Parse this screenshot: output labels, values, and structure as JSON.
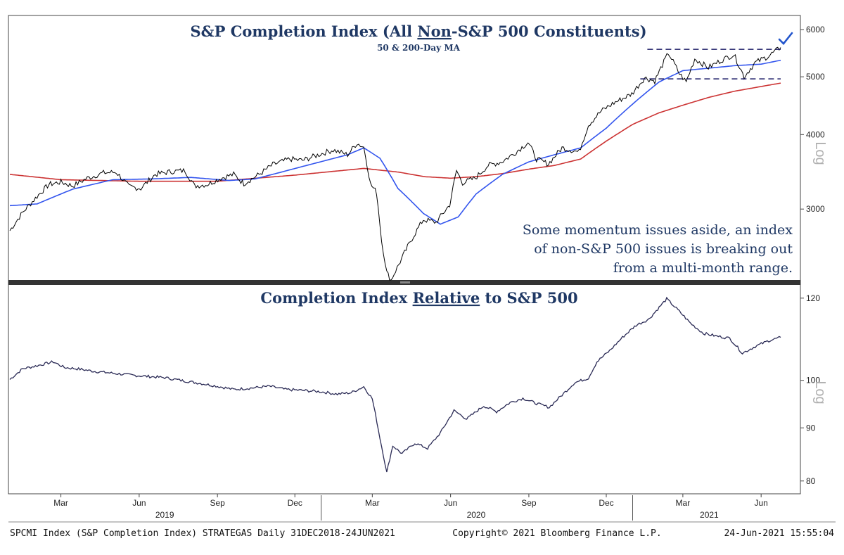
{
  "colors": {
    "title": "#1f3864",
    "price_line": "#000000",
    "ma50": "#3355ee",
    "ma200": "#cc3333",
    "range_lines": "#1a1a66",
    "relative_line": "#2a2a55",
    "check_mark": "#2255cc",
    "divider": "#333333"
  },
  "footer": {
    "left": "SPCMI Index (S&P Completion Index) STRATEGAS  Daily 31DEC2018-24JUN2021",
    "center": "Copyright© 2021 Bloomberg Finance L.P.",
    "right": "24-Jun-2021 15:55:04"
  },
  "x_axis": {
    "month_ticks": [
      {
        "label": "Mar",
        "date": "2019-03-01"
      },
      {
        "label": "Jun",
        "date": "2019-06-01"
      },
      {
        "label": "Sep",
        "date": "2019-09-01"
      },
      {
        "label": "Dec",
        "date": "2019-12-01"
      },
      {
        "label": "Mar",
        "date": "2020-03-01"
      },
      {
        "label": "Jun",
        "date": "2020-06-01"
      },
      {
        "label": "Sep",
        "date": "2020-09-01"
      },
      {
        "label": "Dec",
        "date": "2020-12-01"
      },
      {
        "label": "Mar",
        "date": "2021-03-01"
      },
      {
        "label": "Jun",
        "date": "2021-06-01"
      }
    ],
    "year_labels": [
      {
        "label": "2019",
        "date": "2019-07-01"
      },
      {
        "label": "2020",
        "date": "2020-07-01"
      },
      {
        "label": "2021",
        "date": "2021-04-01"
      }
    ],
    "year_separators": [
      "2020-01-01",
      "2021-01-01"
    ],
    "start": "2018-12-31",
    "end": "2021-06-24"
  },
  "chart_data": [
    {
      "type": "line",
      "title": "S&P Completion Index (All Non-S&P 500 Constituents)",
      "title_parts": [
        "S&P Completion Index (All ",
        "Non",
        "-S&P 500 Constituents)"
      ],
      "subtitle": "50 & 200-Day MA",
      "y_scale": "log",
      "ylabel": "Log",
      "ylim": [
        2300,
        6200
      ],
      "yticks": [
        3000,
        4000,
        5000,
        6000
      ],
      "annotation": [
        "Some momentum issues aside, an index",
        "of non-S&P 500 issues is breaking out",
        "from a multi-month range."
      ],
      "range_band": {
        "upper": 5560,
        "lower": 4960,
        "from": "2021-01-10",
        "to": "2021-06-24"
      },
      "series": [
        {
          "role": "price",
          "points": [
            [
              "2018-12-31",
              2760
            ],
            [
              "2019-01-15",
              2960
            ],
            [
              "2019-02-01",
              3150
            ],
            [
              "2019-02-15",
              3300
            ],
            [
              "2019-03-01",
              3330
            ],
            [
              "2019-03-15",
              3280
            ],
            [
              "2019-04-01",
              3380
            ],
            [
              "2019-04-20",
              3450
            ],
            [
              "2019-05-05",
              3460
            ],
            [
              "2019-05-20",
              3270
            ],
            [
              "2019-06-03",
              3250
            ],
            [
              "2019-06-20",
              3430
            ],
            [
              "2019-07-10",
              3470
            ],
            [
              "2019-07-25",
              3480
            ],
            [
              "2019-08-05",
              3280
            ],
            [
              "2019-08-20",
              3300
            ],
            [
              "2019-09-05",
              3380
            ],
            [
              "2019-09-20",
              3430
            ],
            [
              "2019-10-02",
              3310
            ],
            [
              "2019-10-20",
              3430
            ],
            [
              "2019-11-05",
              3560
            ],
            [
              "2019-11-25",
              3640
            ],
            [
              "2019-12-10",
              3620
            ],
            [
              "2019-12-31",
              3710
            ],
            [
              "2020-01-15",
              3770
            ],
            [
              "2020-02-01",
              3700
            ],
            [
              "2020-02-12",
              3870
            ],
            [
              "2020-02-20",
              3810
            ],
            [
              "2020-02-28",
              3300
            ],
            [
              "2020-03-06",
              3200
            ],
            [
              "2020-03-12",
              2650
            ],
            [
              "2020-03-18",
              2350
            ],
            [
              "2020-03-23",
              2280
            ],
            [
              "2020-04-01",
              2420
            ],
            [
              "2020-04-15",
              2650
            ],
            [
              "2020-04-30",
              2880
            ],
            [
              "2020-05-15",
              2850
            ],
            [
              "2020-05-31",
              3050
            ],
            [
              "2020-06-08",
              3480
            ],
            [
              "2020-06-15",
              3320
            ],
            [
              "2020-06-30",
              3380
            ],
            [
              "2020-07-15",
              3550
            ],
            [
              "2020-07-31",
              3600
            ],
            [
              "2020-08-15",
              3720
            ],
            [
              "2020-08-31",
              3880
            ],
            [
              "2020-09-10",
              3640
            ],
            [
              "2020-09-24",
              3570
            ],
            [
              "2020-10-10",
              3800
            ],
            [
              "2020-10-30",
              3740
            ],
            [
              "2020-11-10",
              4150
            ],
            [
              "2020-11-25",
              4380
            ],
            [
              "2020-12-10",
              4520
            ],
            [
              "2020-12-31",
              4680
            ],
            [
              "2021-01-15",
              4980
            ],
            [
              "2021-01-27",
              4920
            ],
            [
              "2021-02-12",
              5480
            ],
            [
              "2021-02-25",
              5060
            ],
            [
              "2021-03-05",
              4900
            ],
            [
              "2021-03-15",
              5360
            ],
            [
              "2021-03-31",
              5180
            ],
            [
              "2021-04-15",
              5330
            ],
            [
              "2021-04-30",
              5450
            ],
            [
              "2021-05-12",
              5000
            ],
            [
              "2021-05-25",
              5280
            ],
            [
              "2021-06-10",
              5420
            ],
            [
              "2021-06-24",
              5600
            ]
          ]
        },
        {
          "role": "ma50",
          "name": "50-Day MA",
          "points": [
            [
              "2018-12-31",
              3040
            ],
            [
              "2019-02-01",
              3060
            ],
            [
              "2019-03-15",
              3240
            ],
            [
              "2019-05-01",
              3360
            ],
            [
              "2019-06-15",
              3370
            ],
            [
              "2019-08-01",
              3390
            ],
            [
              "2019-09-15",
              3350
            ],
            [
              "2019-10-15",
              3370
            ],
            [
              "2019-11-15",
              3460
            ],
            [
              "2019-12-31",
              3600
            ],
            [
              "2020-02-01",
              3700
            ],
            [
              "2020-02-20",
              3800
            ],
            [
              "2020-03-10",
              3650
            ],
            [
              "2020-03-31",
              3250
            ],
            [
              "2020-04-30",
              2950
            ],
            [
              "2020-05-20",
              2830
            ],
            [
              "2020-06-10",
              2910
            ],
            [
              "2020-07-01",
              3180
            ],
            [
              "2020-08-01",
              3430
            ],
            [
              "2020-09-01",
              3600
            ],
            [
              "2020-10-01",
              3700
            ],
            [
              "2020-11-01",
              3800
            ],
            [
              "2020-12-01",
              4100
            ],
            [
              "2021-01-01",
              4500
            ],
            [
              "2021-02-01",
              4900
            ],
            [
              "2021-03-01",
              5120
            ],
            [
              "2021-04-01",
              5170
            ],
            [
              "2021-05-01",
              5220
            ],
            [
              "2021-06-01",
              5250
            ],
            [
              "2021-06-24",
              5330
            ]
          ]
        },
        {
          "role": "ma200",
          "name": "200-Day MA",
          "points": [
            [
              "2018-12-31",
              3430
            ],
            [
              "2019-03-01",
              3360
            ],
            [
              "2019-06-01",
              3340
            ],
            [
              "2019-09-01",
              3340
            ],
            [
              "2019-12-01",
              3420
            ],
            [
              "2020-02-20",
              3510
            ],
            [
              "2020-04-01",
              3460
            ],
            [
              "2020-05-01",
              3400
            ],
            [
              "2020-06-01",
              3380
            ],
            [
              "2020-07-01",
              3400
            ],
            [
              "2020-08-01",
              3440
            ],
            [
              "2020-09-01",
              3500
            ],
            [
              "2020-10-01",
              3550
            ],
            [
              "2020-11-01",
              3640
            ],
            [
              "2020-12-01",
              3900
            ],
            [
              "2021-01-01",
              4160
            ],
            [
              "2021-02-01",
              4350
            ],
            [
              "2021-03-01",
              4480
            ],
            [
              "2021-04-01",
              4620
            ],
            [
              "2021-05-01",
              4730
            ],
            [
              "2021-06-24",
              4880
            ]
          ]
        }
      ]
    },
    {
      "type": "line",
      "title": "Completion Index Relative to S&P 500",
      "title_parts": [
        "Completion Index ",
        "Relative",
        " to S&P 500"
      ],
      "y_scale": "log",
      "ylabel": "Log",
      "ylim": [
        78,
        123
      ],
      "yticks": [
        80,
        90,
        100,
        120
      ],
      "series": [
        {
          "role": "relative",
          "points": [
            [
              "2018-12-31",
              100.2
            ],
            [
              "2019-01-15",
              102.6
            ],
            [
              "2019-02-01",
              103.3
            ],
            [
              "2019-02-20",
              104.2
            ],
            [
              "2019-03-05",
              102.9
            ],
            [
              "2019-03-20",
              102.6
            ],
            [
              "2019-04-10",
              102.0
            ],
            [
              "2019-05-01",
              101.6
            ],
            [
              "2019-05-20",
              101.2
            ],
            [
              "2019-06-10",
              100.9
            ],
            [
              "2019-07-01",
              100.6
            ],
            [
              "2019-07-20",
              100.0
            ],
            [
              "2019-08-10",
              99.4
            ],
            [
              "2019-09-01",
              98.7
            ],
            [
              "2019-09-20",
              98.0
            ],
            [
              "2019-10-10",
              98.3
            ],
            [
              "2019-11-01",
              98.7
            ],
            [
              "2019-11-20",
              98.0
            ],
            [
              "2019-12-10",
              97.8
            ],
            [
              "2020-01-01",
              97.5
            ],
            [
              "2020-01-20",
              97.0
            ],
            [
              "2020-02-05",
              97.3
            ],
            [
              "2020-02-20",
              98.6
            ],
            [
              "2020-03-01",
              96.0
            ],
            [
              "2020-03-10",
              88.0
            ],
            [
              "2020-03-18",
              81.5
            ],
            [
              "2020-03-25",
              86.5
            ],
            [
              "2020-04-05",
              85.0
            ],
            [
              "2020-04-20",
              87.0
            ],
            [
              "2020-05-05",
              86.0
            ],
            [
              "2020-05-20",
              89.0
            ],
            [
              "2020-06-05",
              93.5
            ],
            [
              "2020-06-20",
              91.8
            ],
            [
              "2020-07-10",
              94.5
            ],
            [
              "2020-07-25",
              93.3
            ],
            [
              "2020-08-10",
              95.2
            ],
            [
              "2020-08-25",
              96.1
            ],
            [
              "2020-09-10",
              95.0
            ],
            [
              "2020-09-25",
              94.2
            ],
            [
              "2020-10-10",
              96.8
            ],
            [
              "2020-10-25",
              99.5
            ],
            [
              "2020-11-10",
              100.5
            ],
            [
              "2020-11-20",
              104.2
            ],
            [
              "2020-12-05",
              106.8
            ],
            [
              "2020-12-20",
              110.0
            ],
            [
              "2021-01-05",
              113.0
            ],
            [
              "2021-01-20",
              114.5
            ],
            [
              "2021-02-10",
              119.8
            ],
            [
              "2021-02-25",
              116.5
            ],
            [
              "2021-03-10",
              113.5
            ],
            [
              "2021-03-25",
              111.0
            ],
            [
              "2021-04-10",
              110.3
            ],
            [
              "2021-04-25",
              109.8
            ],
            [
              "2021-05-10",
              106.2
            ],
            [
              "2021-05-25",
              107.8
            ],
            [
              "2021-06-10",
              109.2
            ],
            [
              "2021-06-24",
              110.0
            ]
          ]
        }
      ]
    }
  ]
}
